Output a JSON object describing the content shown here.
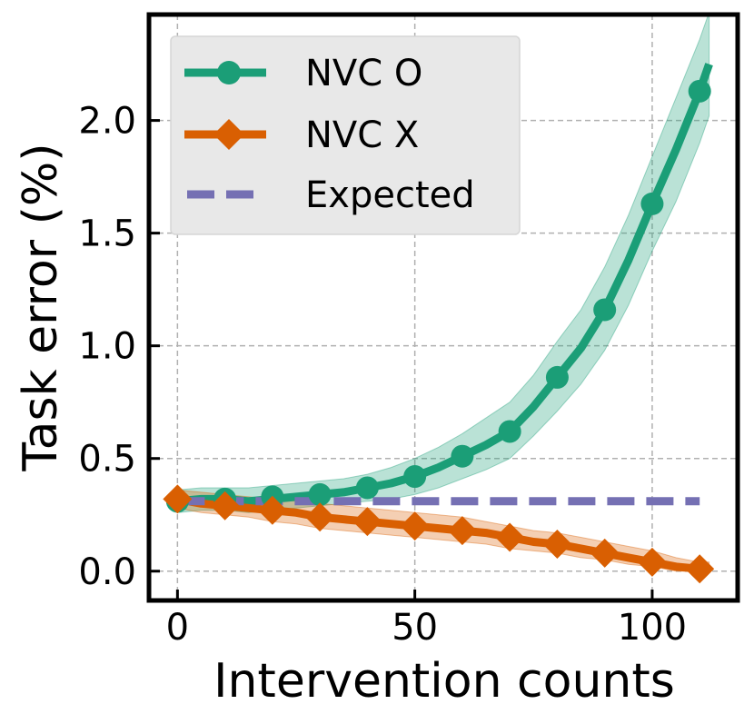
{
  "chart_data": {
    "type": "line",
    "xlabel": "Intervention counts",
    "ylabel": "Task error (%)",
    "xlim": [
      -6,
      118
    ],
    "ylim": [
      -0.13,
      2.47
    ],
    "xticks": [
      0,
      50,
      100
    ],
    "xtick_labels": [
      "0",
      "50",
      "100"
    ],
    "yticks": [
      0.0,
      0.5,
      1.0,
      1.5,
      2.0
    ],
    "ytick_labels": [
      "0.0",
      "0.5",
      "1.0",
      "1.5",
      "2.0"
    ],
    "grid": true,
    "legend_position": "top-left",
    "series": [
      {
        "name": "NVC O",
        "color": "#1b9e77",
        "marker": "circle",
        "line_x": [
          0,
          5,
          10,
          15,
          20,
          25,
          30,
          35,
          40,
          45,
          50,
          55,
          60,
          65,
          70,
          75,
          80,
          85,
          90,
          95,
          100,
          105,
          110,
          112
        ],
        "line_y": [
          0.31,
          0.32,
          0.32,
          0.31,
          0.32,
          0.33,
          0.34,
          0.35,
          0.37,
          0.39,
          0.42,
          0.46,
          0.51,
          0.56,
          0.62,
          0.73,
          0.86,
          0.99,
          1.16,
          1.38,
          1.63,
          1.87,
          2.13,
          2.25
        ],
        "lower": [
          0.26,
          0.27,
          0.27,
          0.26,
          0.27,
          0.28,
          0.29,
          0.3,
          0.31,
          0.32,
          0.34,
          0.37,
          0.41,
          0.45,
          0.5,
          0.6,
          0.71,
          0.83,
          0.98,
          1.18,
          1.42,
          1.64,
          1.9,
          2.02
        ],
        "upper": [
          0.36,
          0.37,
          0.37,
          0.37,
          0.38,
          0.39,
          0.4,
          0.41,
          0.43,
          0.46,
          0.5,
          0.55,
          0.61,
          0.68,
          0.75,
          0.87,
          1.02,
          1.16,
          1.35,
          1.58,
          1.84,
          2.1,
          2.36,
          2.48
        ],
        "marker_x": [
          0,
          10,
          20,
          30,
          40,
          50,
          60,
          70,
          80,
          90,
          100,
          110
        ],
        "marker_y": [
          0.31,
          0.32,
          0.33,
          0.34,
          0.37,
          0.42,
          0.51,
          0.62,
          0.86,
          1.16,
          1.63,
          2.13
        ]
      },
      {
        "name": "NVC X",
        "color": "#d95f02",
        "marker": "diamond",
        "line_x": [
          0,
          5,
          10,
          15,
          20,
          25,
          30,
          35,
          40,
          45,
          50,
          55,
          60,
          65,
          70,
          75,
          80,
          85,
          90,
          95,
          100,
          105,
          110,
          112
        ],
        "line_y": [
          0.32,
          0.3,
          0.29,
          0.28,
          0.27,
          0.26,
          0.24,
          0.23,
          0.22,
          0.21,
          0.2,
          0.19,
          0.18,
          0.17,
          0.15,
          0.13,
          0.12,
          0.1,
          0.08,
          0.06,
          0.04,
          0.02,
          0.01,
          0.01
        ],
        "lower": [
          0.28,
          0.26,
          0.25,
          0.24,
          0.22,
          0.21,
          0.19,
          0.18,
          0.17,
          0.16,
          0.15,
          0.14,
          0.13,
          0.12,
          0.1,
          0.09,
          0.08,
          0.06,
          0.05,
          0.03,
          0.02,
          0.0,
          0.0,
          0.0
        ],
        "upper": [
          0.36,
          0.35,
          0.34,
          0.33,
          0.32,
          0.31,
          0.3,
          0.29,
          0.28,
          0.27,
          0.26,
          0.25,
          0.24,
          0.22,
          0.2,
          0.18,
          0.17,
          0.15,
          0.13,
          0.11,
          0.09,
          0.06,
          0.04,
          0.04
        ],
        "marker_x": [
          0,
          10,
          20,
          30,
          40,
          50,
          60,
          70,
          80,
          90,
          100,
          110
        ],
        "marker_y": [
          0.32,
          0.29,
          0.27,
          0.24,
          0.22,
          0.2,
          0.18,
          0.15,
          0.12,
          0.08,
          0.04,
          0.01
        ]
      },
      {
        "name": "Expected",
        "color": "#7570b3",
        "style": "dashed",
        "line_x": [
          0,
          110
        ],
        "line_y": [
          0.31,
          0.31
        ]
      }
    ]
  }
}
